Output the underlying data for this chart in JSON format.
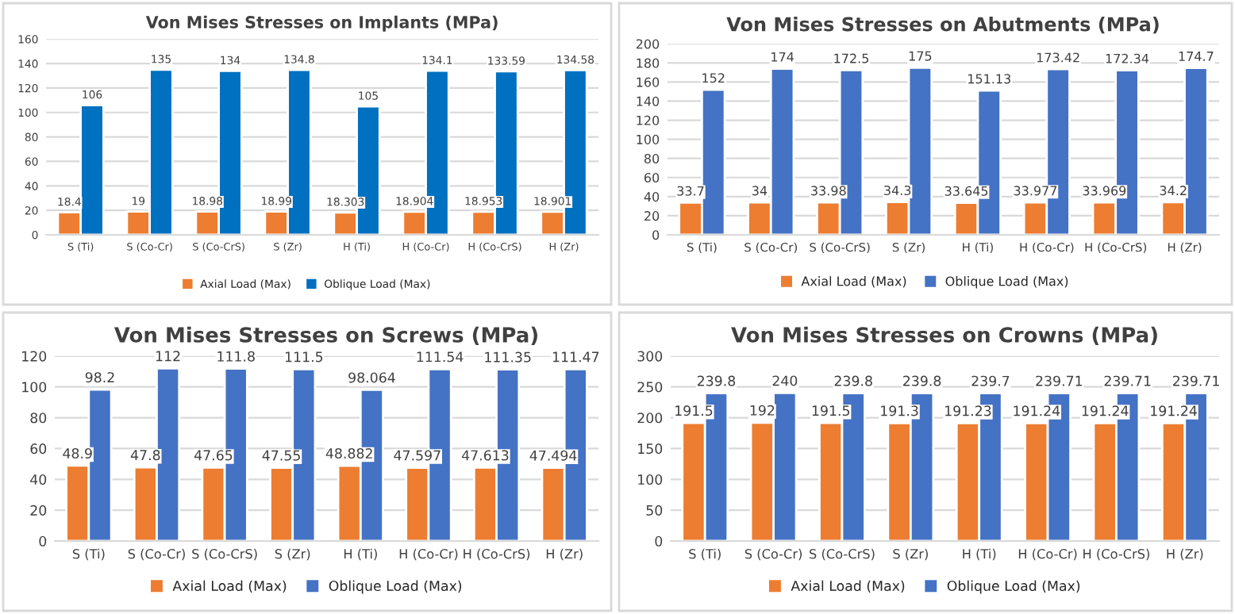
{
  "chart_data": [
    {
      "type": "bar",
      "title": "Von Mises Stresses on Implants (MPa)",
      "categories": [
        "S (Ti)",
        "S (Co-Cr)",
        "S (Co-CrS)",
        "S (Zr)",
        "H (Ti)",
        "H (Co-Cr)",
        "H (Co-CrS)",
        "H (Zr)"
      ],
      "series": [
        {
          "name": "Axial Load (Max)",
          "color": "#ed7d31",
          "values": [
            18.4,
            19,
            18.98,
            18.99,
            18.303,
            18.904,
            18.953,
            18.901
          ]
        },
        {
          "name": "Oblique Load (Max)",
          "color": "#0070c0",
          "values": [
            106,
            135,
            134,
            134.8,
            105,
            134.1,
            133.59,
            134.58
          ]
        }
      ],
      "ylim": [
        0,
        160
      ],
      "yticks": [
        0,
        20,
        40,
        60,
        80,
        100,
        120,
        140,
        160
      ],
      "grid": "y",
      "legend": "bottom",
      "data_labels": true
    },
    {
      "type": "bar",
      "title": "Von Mises Stresses on Abutments (MPa)",
      "categories": [
        "S (Ti)",
        "S (Co-Cr)",
        "S (Co-CrS)",
        "S (Zr)",
        "H (Ti)",
        "H (Co-Cr)",
        "H (Co-CrS)",
        "H (Zr)"
      ],
      "series": [
        {
          "name": "Axial Load (Max)",
          "color": "#ed7d31",
          "values": [
            33.7,
            34,
            33.98,
            34.3,
            33.645,
            33.977,
            33.969,
            34.2
          ]
        },
        {
          "name": "Oblique Load (Max)",
          "color": "#4472c4",
          "values": [
            152,
            174,
            172.5,
            175,
            151.13,
            173.42,
            172.34,
            174.7
          ]
        }
      ],
      "ylim": [
        0,
        200
      ],
      "yticks": [
        0,
        20,
        40,
        60,
        80,
        100,
        120,
        140,
        160,
        180,
        200
      ],
      "grid": "y",
      "legend": "bottom",
      "data_labels": true
    },
    {
      "type": "bar",
      "title": "Von Mises Stresses on Screws (MPa)",
      "categories": [
        "S (Ti)",
        "S (Co-Cr)",
        "S (Co-CrS)",
        "S (Zr)",
        "H (Ti)",
        "H (Co-Cr)",
        "H (Co-CrS)",
        "H (Zr)"
      ],
      "series": [
        {
          "name": "Axial Load (Max)",
          "color": "#ed7d31",
          "values": [
            48.9,
            47.8,
            47.65,
            47.55,
            48.882,
            47.597,
            47.613,
            47.494
          ]
        },
        {
          "name": "Oblique Load (Max)",
          "color": "#4472c4",
          "values": [
            98.2,
            112,
            111.8,
            111.5,
            98.064,
            111.54,
            111.35,
            111.47
          ]
        }
      ],
      "ylim": [
        0,
        120
      ],
      "yticks": [
        0,
        20,
        40,
        60,
        80,
        100,
        120
      ],
      "grid": "y",
      "legend": "bottom",
      "data_labels": true
    },
    {
      "type": "bar",
      "title": "Von Mises Stresses on Crowns (MPa)",
      "categories": [
        "S (Ti)",
        "S (Co-Cr)",
        "S (Co-CrS)",
        "S (Zr)",
        "H (Ti)",
        "H (Co-Cr)",
        "H (Co-CrS)",
        "H (Zr)"
      ],
      "series": [
        {
          "name": "Axial Load (Max)",
          "color": "#ed7d31",
          "values": [
            191.5,
            192,
            191.5,
            191.3,
            191.23,
            191.24,
            191.24,
            191.24
          ]
        },
        {
          "name": "Oblique Load (Max)",
          "color": "#4472c4",
          "values": [
            239.8,
            240,
            239.8,
            239.8,
            239.7,
            239.71,
            239.71,
            239.71
          ]
        }
      ],
      "ylim": [
        0,
        300
      ],
      "yticks": [
        0,
        50,
        100,
        150,
        200,
        250,
        300
      ],
      "grid": "y",
      "legend": "bottom",
      "data_labels": true
    }
  ]
}
